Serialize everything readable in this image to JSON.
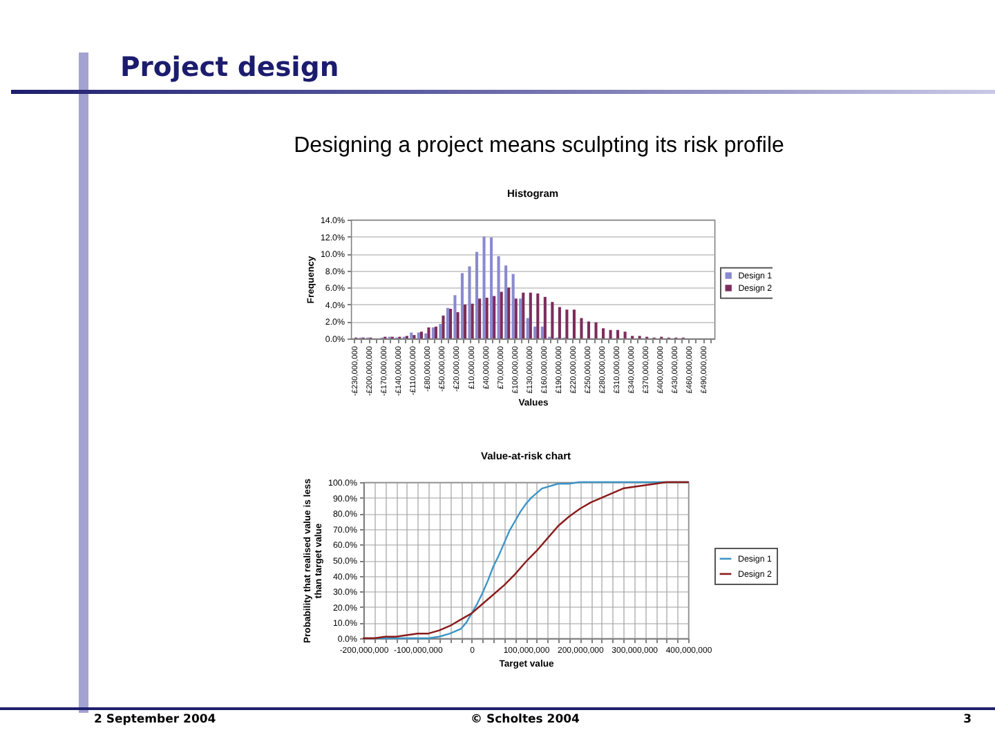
{
  "chart_data": [
    {
      "type": "other",
      "title": "Project design",
      "subtitle": "Designing a project means sculpting its risk profile",
      "annotations": [
        "2 September 2004",
        "© Scholtes 2004",
        "3"
      ]
    },
    {
      "type": "bar",
      "title": "Histogram",
      "xlabel": "Values",
      "ylabel": "Frequency",
      "categories": [
        "-£230,000,000",
        null,
        "-£200,000,000",
        null,
        "-£170,000,000",
        null,
        "-£140,000,000",
        null,
        "-£110,000,000",
        null,
        "-£80,000,000",
        null,
        "-£50,000,000",
        null,
        "-£20,000,000",
        null,
        "£10,000,000",
        null,
        "£40,000,000",
        null,
        "£70,000,000",
        null,
        "£100,000,000",
        null,
        "£130,000,000",
        null,
        "£160,000,000",
        null,
        "£190,000,000",
        null,
        "£220,000,000",
        null,
        "£250,000,000",
        null,
        "£280,000,000",
        null,
        "£310,000,000",
        null,
        "£340,000,000",
        null,
        "£370,000,000",
        null,
        "£400,000,000",
        null,
        "£430,000,000",
        null,
        "£460,000,000",
        null,
        "£490,000,000",
        null
      ],
      "series": [
        {
          "name": "Design 1",
          "color": "#8a8ad0",
          "values": [
            0,
            0.1,
            0.1,
            0,
            0.1,
            0.2,
            0.1,
            0.2,
            0.7,
            0.7,
            0.6,
            1.3,
            1.7,
            3.6,
            5.1,
            7.7,
            8.5,
            10.2,
            12.0,
            11.9,
            9.7,
            8.6,
            7.6,
            4.7,
            2.4,
            1.4,
            1.4,
            0.2,
            0.1,
            0.1,
            0,
            0,
            0,
            0,
            0,
            0,
            0,
            0,
            0,
            0,
            0,
            0,
            0,
            0,
            0,
            0,
            0,
            0,
            0,
            0
          ]
        },
        {
          "name": "Design 2",
          "color": "#7d2c5c",
          "values": [
            0.1,
            0.1,
            0.1,
            0,
            0.2,
            0.2,
            0.2,
            0.3,
            0.4,
            0.8,
            1.3,
            1.4,
            2.7,
            3.5,
            3.1,
            4.0,
            4.1,
            4.7,
            4.8,
            5.0,
            5.5,
            6.0,
            4.7,
            5.4,
            5.4,
            5.3,
            4.9,
            4.3,
            3.7,
            3.4,
            3.4,
            2.4,
            2.0,
            1.9,
            1.2,
            1.0,
            1.0,
            0.8,
            0.3,
            0.3,
            0.2,
            0.1,
            0.2,
            0.1,
            0.1,
            0.1,
            0,
            0,
            0,
            0
          ]
        }
      ],
      "ylim": [
        0,
        14
      ],
      "yticks": [
        {
          "value": 0,
          "label": "0.0%"
        },
        {
          "value": 2,
          "label": "2.0%"
        },
        {
          "value": 4,
          "label": "4.0%"
        },
        {
          "value": 6,
          "label": "6.0%"
        },
        {
          "value": 8,
          "label": "8.0%"
        },
        {
          "value": 10,
          "label": "10.0%"
        },
        {
          "value": 12,
          "label": "12.0%"
        },
        {
          "value": 14,
          "label": "14.0%"
        }
      ],
      "grid": "y",
      "legend": "right"
    },
    {
      "type": "line",
      "title": "Value-at-risk chart",
      "xlabel": "Target value",
      "ylabel": "Probability that realised value is less than target value",
      "series": [
        {
          "name": "Design 1",
          "color": "#3d95c6",
          "x": [
            -200000000,
            -100000000,
            -80000000,
            -60000000,
            -40000000,
            -20000000,
            -10000000,
            0,
            10000000,
            20000000,
            30000000,
            40000000,
            50000000,
            60000000,
            70000000,
            80000000,
            90000000,
            100000000,
            110000000,
            120000000,
            130000000,
            140000000,
            150000000,
            160000000,
            180000000,
            200000000,
            400000000
          ],
          "values": [
            0,
            0,
            0,
            1,
            3,
            6,
            10,
            16,
            22,
            29,
            37,
            46,
            53,
            61,
            69,
            75,
            81,
            86,
            90,
            93,
            96,
            97,
            98,
            99,
            99,
            100,
            100
          ]
        },
        {
          "name": "Design 2",
          "color": "#8b1a1a",
          "x": [
            -200000000,
            -180000000,
            -160000000,
            -140000000,
            -120000000,
            -100000000,
            -80000000,
            -60000000,
            -40000000,
            -20000000,
            0,
            20000000,
            40000000,
            60000000,
            80000000,
            100000000,
            120000000,
            140000000,
            160000000,
            180000000,
            200000000,
            220000000,
            240000000,
            260000000,
            280000000,
            300000000,
            320000000,
            340000000,
            360000000,
            380000000,
            400000000
          ],
          "values": [
            0,
            0,
            1,
            1,
            2,
            3,
            3,
            5,
            8,
            12,
            16,
            22,
            28,
            34,
            41,
            49,
            56,
            64,
            72,
            78,
            83,
            87,
            90,
            93,
            96,
            97,
            98,
            99,
            100,
            100,
            100
          ]
        }
      ],
      "xlim": [
        -200000000,
        400000000
      ],
      "xticks": [
        {
          "value": -200000000,
          "label": "-200,000,000"
        },
        {
          "value": -180000000,
          "label": null
        },
        {
          "value": -160000000,
          "label": null
        },
        {
          "value": -140000000,
          "label": null
        },
        {
          "value": -120000000,
          "label": null
        },
        {
          "value": -100000000,
          "label": "-100,000,000"
        },
        {
          "value": -80000000,
          "label": null
        },
        {
          "value": -60000000,
          "label": null
        },
        {
          "value": -40000000,
          "label": null
        },
        {
          "value": -20000000,
          "label": null
        },
        0,
        {
          "value": 20000000,
          "label": null
        },
        {
          "value": 40000000,
          "label": null
        },
        {
          "value": 60000000,
          "label": null
        },
        {
          "value": 80000000,
          "label": null
        },
        {
          "value": 100000000,
          "label": "100,000,000"
        },
        {
          "value": 120000000,
          "label": null
        },
        {
          "value": 140000000,
          "label": null
        },
        {
          "value": 160000000,
          "label": null
        },
        {
          "value": 180000000,
          "label": null
        },
        {
          "value": 200000000,
          "label": "200,000,000"
        },
        {
          "value": 220000000,
          "label": null
        },
        {
          "value": 240000000,
          "label": null
        },
        {
          "value": 260000000,
          "label": null
        },
        {
          "value": 280000000,
          "label": null
        },
        {
          "value": 300000000,
          "label": "300,000,000"
        },
        {
          "value": 320000000,
          "label": null
        },
        {
          "value": 340000000,
          "label": null
        },
        {
          "value": 360000000,
          "label": null
        },
        {
          "value": 380000000,
          "label": null
        },
        {
          "value": 400000000,
          "label": "400,000,000"
        }
      ],
      "ylim": [
        0,
        100
      ],
      "yticks": [
        {
          "value": 0,
          "label": "0.0%"
        },
        {
          "value": 10,
          "label": "10.0%"
        },
        {
          "value": 20,
          "label": "20.0%"
        },
        {
          "value": 30,
          "label": "30.0%"
        },
        {
          "value": 40,
          "label": "40.0%"
        },
        {
          "value": 50,
          "label": "50.0%"
        },
        {
          "value": 60,
          "label": "60.0%"
        },
        {
          "value": 70,
          "label": "70.0%"
        },
        {
          "value": 80,
          "label": "80.0%"
        },
        {
          "value": 90,
          "label": "90.0%"
        },
        {
          "value": 100,
          "label": "100.0%"
        }
      ],
      "grid": true,
      "legend": "right"
    }
  ]
}
